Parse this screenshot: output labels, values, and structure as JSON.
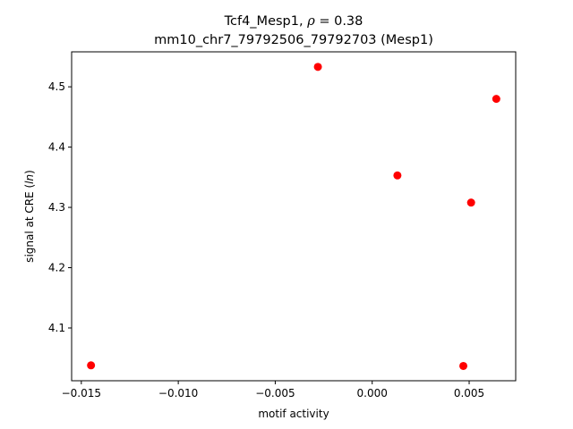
{
  "chart_data": {
    "type": "scatter",
    "title_line1_prefix": "Tcf4_Mesp1, ",
    "title_line1_rho": "ρ",
    "title_line1_suffix": " = 0.38",
    "title_line2": "mm10_chr7_79792506_79792703 (Mesp1)",
    "xlabel": "motif activity",
    "ylabel_prefix": "signal at CRE (",
    "ylabel_italic": "ln",
    "ylabel_suffix": ")",
    "xlim": [
      -0.0155,
      0.0074
    ],
    "ylim": [
      4.0125,
      4.558
    ],
    "xticks": [
      -0.015,
      -0.01,
      -0.005,
      0.0,
      0.005
    ],
    "xtick_labels": [
      "−0.015",
      "−0.010",
      "−0.005",
      "0.000",
      "0.005"
    ],
    "yticks": [
      4.1,
      4.2,
      4.3,
      4.4,
      4.5
    ],
    "ytick_labels": [
      "4.1",
      "4.2",
      "4.3",
      "4.4",
      "4.5"
    ],
    "grid": false,
    "marker_color": "#ff0000",
    "points": [
      {
        "x": -0.0145,
        "y": 4.038
      },
      {
        "x": -0.0028,
        "y": 4.533
      },
      {
        "x": 0.0013,
        "y": 4.353
      },
      {
        "x": 0.0047,
        "y": 4.037
      },
      {
        "x": 0.0051,
        "y": 4.308
      },
      {
        "x": 0.0064,
        "y": 4.48
      }
    ]
  }
}
